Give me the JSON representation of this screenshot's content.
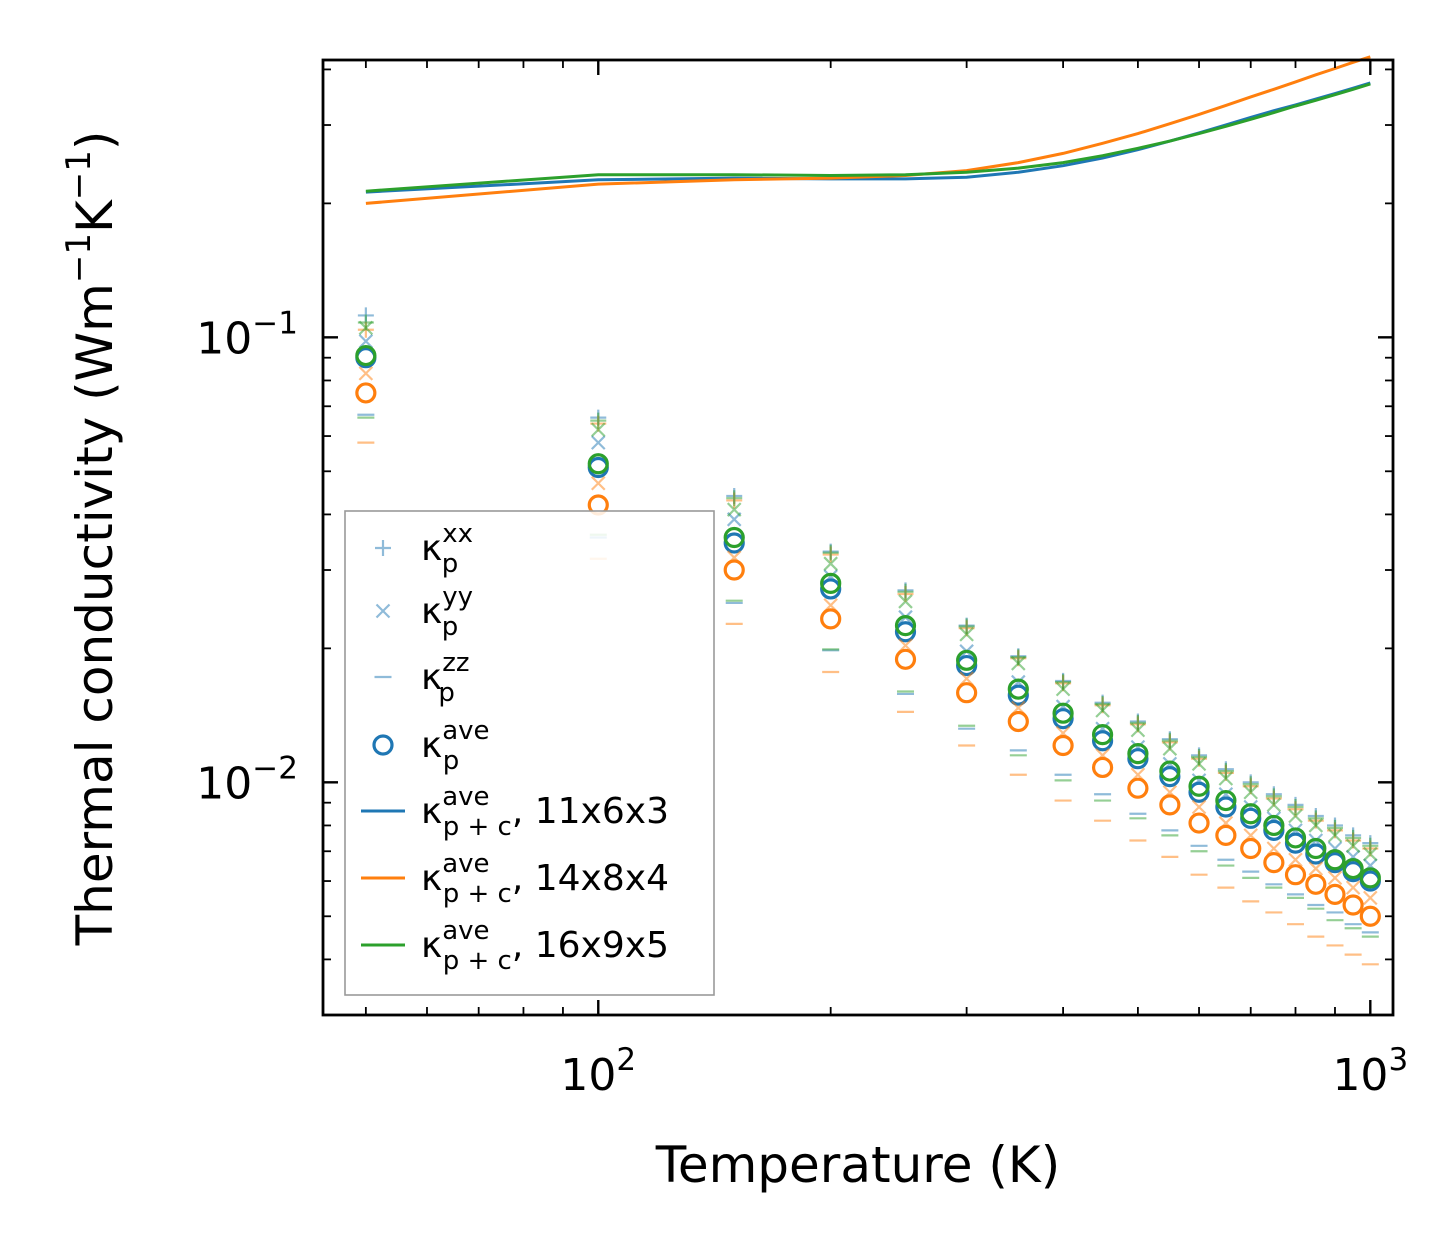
{
  "chart_data": {
    "type": "scatter",
    "xscale": "log",
    "yscale": "log",
    "xlim": [
      44,
      1070
    ],
    "ylim": [
      0.003,
      0.42
    ],
    "xlabel": "Temperature (K)",
    "ylabel": {
      "base": "Thermal conductivity (Wm",
      "exp1": "−1",
      "mid": "K",
      "exp2": "−1",
      "end": ")"
    },
    "xticks": [
      {
        "value": 100,
        "base": "10",
        "exp": "2"
      },
      {
        "value": 1000,
        "base": "10",
        "exp": "3"
      }
    ],
    "yticks": [
      {
        "value": 0.1,
        "base": "10",
        "exp": "−1"
      },
      {
        "value": 0.01,
        "base": "10",
        "exp": "−2"
      }
    ],
    "temperatures": [
      50,
      100,
      150,
      200,
      250,
      300,
      350,
      400,
      450,
      500,
      550,
      600,
      650,
      700,
      750,
      800,
      850,
      900,
      950,
      1000
    ],
    "series": [
      {
        "name": "11x6x3",
        "color": "#1f77b4",
        "kxx": [
          0.112,
          0.066,
          0.044,
          0.033,
          0.027,
          0.0225,
          0.0192,
          0.0169,
          0.0151,
          0.0137,
          0.0125,
          0.0115,
          0.0107,
          0.01,
          0.0094,
          0.0089,
          0.0084,
          0.008,
          0.0076,
          0.0073
        ],
        "kyy": [
          0.098,
          0.058,
          0.039,
          0.029,
          0.0235,
          0.0197,
          0.0168,
          0.0148,
          0.0132,
          0.012,
          0.011,
          0.0101,
          0.0094,
          0.0088,
          0.0083,
          0.0078,
          0.0074,
          0.0071,
          0.0068,
          0.0065
        ],
        "kzz": [
          0.067,
          0.0355,
          0.0253,
          0.0198,
          0.0158,
          0.0132,
          0.0118,
          0.0104,
          0.0094,
          0.0085,
          0.0078,
          0.0072,
          0.0067,
          0.0063,
          0.0059,
          0.0056,
          0.0053,
          0.0051,
          0.0048,
          0.0046
        ],
        "kave": [
          0.09,
          0.051,
          0.0345,
          0.0272,
          0.0218,
          0.0183,
          0.0157,
          0.0139,
          0.0124,
          0.0113,
          0.0103,
          0.0095,
          0.0088,
          0.0083,
          0.0078,
          0.0073,
          0.0069,
          0.0066,
          0.0063,
          0.006
        ],
        "kpc": [
          0.212,
          0.226,
          0.228,
          0.227,
          0.227,
          0.229,
          0.235,
          0.243,
          0.253,
          0.264,
          0.276,
          0.288,
          0.3,
          0.312,
          0.323,
          0.333,
          0.343,
          0.353,
          0.363,
          0.373
        ]
      },
      {
        "name": "14x8x4",
        "color": "#ff7f0e",
        "kxx": [
          0.104,
          0.064,
          0.043,
          0.0325,
          0.0265,
          0.0222,
          0.019,
          0.0167,
          0.0149,
          0.0135,
          0.0123,
          0.0113,
          0.0105,
          0.0098,
          0.0092,
          0.0087,
          0.0082,
          0.0078,
          0.0074,
          0.0071
        ],
        "kyy": [
          0.083,
          0.047,
          0.032,
          0.025,
          0.0203,
          0.0171,
          0.0147,
          0.0129,
          0.0115,
          0.0104,
          0.0095,
          0.0088,
          0.0081,
          0.0076,
          0.0071,
          0.0067,
          0.0064,
          0.0061,
          0.0058,
          0.0055
        ],
        "kzz": [
          0.058,
          0.0318,
          0.0227,
          0.0177,
          0.0144,
          0.0121,
          0.0104,
          0.0091,
          0.0082,
          0.0074,
          0.0068,
          0.0062,
          0.0058,
          0.0054,
          0.0051,
          0.0048,
          0.0045,
          0.0043,
          0.0041,
          0.0039
        ],
        "kave": [
          0.075,
          0.042,
          0.03,
          0.0233,
          0.0189,
          0.0159,
          0.0137,
          0.0121,
          0.0108,
          0.0097,
          0.0089,
          0.0081,
          0.0076,
          0.0071,
          0.0066,
          0.0062,
          0.0059,
          0.0056,
          0.0053,
          0.005
        ],
        "kpc": [
          0.2,
          0.221,
          0.226,
          0.228,
          0.231,
          0.237,
          0.247,
          0.259,
          0.273,
          0.287,
          0.302,
          0.317,
          0.332,
          0.347,
          0.361,
          0.375,
          0.389,
          0.402,
          0.415,
          0.427
        ]
      },
      {
        "name": "16x9x5",
        "color": "#2ca02c",
        "kxx": [
          0.108,
          0.065,
          0.0435,
          0.0328,
          0.0268,
          0.0224,
          0.0191,
          0.0168,
          0.015,
          0.0136,
          0.0124,
          0.0114,
          0.0106,
          0.0099,
          0.0093,
          0.0088,
          0.0083,
          0.0079,
          0.0075,
          0.0072
        ],
        "kyy": [
          0.105,
          0.062,
          0.041,
          0.031,
          0.0255,
          0.0215,
          0.0185,
          0.0162,
          0.0145,
          0.0131,
          0.0119,
          0.011,
          0.0102,
          0.0095,
          0.0089,
          0.0084,
          0.008,
          0.0076,
          0.0072,
          0.0069
        ],
        "kzz": [
          0.066,
          0.036,
          0.0256,
          0.0199,
          0.016,
          0.0134,
          0.0115,
          0.0101,
          0.0091,
          0.0083,
          0.0076,
          0.007,
          0.0065,
          0.0061,
          0.0058,
          0.0055,
          0.0052,
          0.0049,
          0.0047,
          0.0045
        ],
        "kave": [
          0.091,
          0.052,
          0.0355,
          0.028,
          0.0225,
          0.0188,
          0.0162,
          0.0143,
          0.0128,
          0.0116,
          0.0106,
          0.0098,
          0.0091,
          0.0085,
          0.008,
          0.0075,
          0.0071,
          0.0067,
          0.0064,
          0.0061
        ],
        "kpc": [
          0.213,
          0.232,
          0.232,
          0.231,
          0.232,
          0.235,
          0.24,
          0.247,
          0.256,
          0.266,
          0.276,
          0.287,
          0.298,
          0.309,
          0.32,
          0.331,
          0.341,
          0.351,
          0.361,
          0.371
        ]
      }
    ],
    "legend": {
      "position": "lower-left",
      "entries": [
        {
          "kind": "plus",
          "color": "#1f77b4",
          "base": "κ",
          "sup": "xx",
          "sub": "p",
          "suffix": ""
        },
        {
          "kind": "cross",
          "color": "#1f77b4",
          "base": "κ",
          "sup": "yy",
          "sub": "p",
          "suffix": ""
        },
        {
          "kind": "dash",
          "color": "#1f77b4",
          "base": "κ",
          "sup": "zz",
          "sub": "p",
          "suffix": ""
        },
        {
          "kind": "circle",
          "color": "#1f77b4",
          "base": "κ",
          "sup": "ave",
          "sub": "p",
          "suffix": ""
        },
        {
          "kind": "line",
          "color": "#1f77b4",
          "base": "κ",
          "sup": "ave",
          "sub": "p + c",
          "suffix": ", 11x6x3"
        },
        {
          "kind": "line",
          "color": "#ff7f0e",
          "base": "κ",
          "sup": "ave",
          "sub": "p + c",
          "suffix": ", 14x8x4"
        },
        {
          "kind": "line",
          "color": "#2ca02c",
          "base": "κ",
          "sup": "ave",
          "sub": "p + c",
          "suffix": ", 16x9x5"
        }
      ]
    }
  }
}
